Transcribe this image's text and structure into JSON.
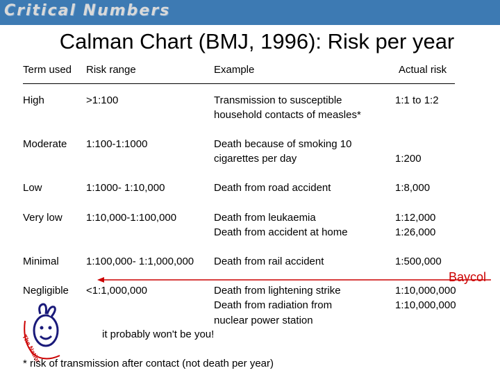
{
  "banner": {
    "title": "Critical Numbers"
  },
  "title": "Calman Chart (BMJ, 1996): Risk per year",
  "headers": {
    "term": "Term used",
    "range": "Risk range",
    "example": "Example",
    "actual": "Actual risk"
  },
  "rows": [
    {
      "term": "High",
      "range": ">1:100",
      "example": [
        "Transmission to susceptible",
        "household contacts of measles*"
      ],
      "actual": [
        "1:1 to 1:2"
      ]
    },
    {
      "term": "Moderate",
      "range": "1:100-1:1000",
      "example": [
        "Death because of smoking 10",
        "cigarettes per day"
      ],
      "actual": [
        "1:200"
      ]
    },
    {
      "term": "Low",
      "range": "1:1000- 1:10,000",
      "example": [
        "Death from road accident"
      ],
      "actual": [
        "1:8,000"
      ]
    },
    {
      "term": "Very low",
      "range": "1:10,000-1:100,000",
      "example": [
        "Death from leukaemia",
        "Death from accident at home"
      ],
      "actual": [
        "1:12,000",
        "1:26,000"
      ]
    },
    {
      "term": "Minimal",
      "range": "1:100,000- 1:1,000,000",
      "example": [
        "Death from rail accident"
      ],
      "actual": [
        "1:500,000"
      ]
    },
    {
      "term": "Negligible",
      "range": "<1:1,000,000",
      "example": [
        "Death from lightening strike",
        "Death from radiation from",
        "nuclear power station"
      ],
      "actual": [
        "1:10,000,000",
        "1:10,000,000"
      ]
    }
  ],
  "annotation": {
    "label": "Baycol",
    "color": "#cc0000"
  },
  "logo": {
    "text": "The National Lottery"
  },
  "probably": "it probably won't be you!",
  "footnote": "* risk of transmission after contact (not death per year)"
}
